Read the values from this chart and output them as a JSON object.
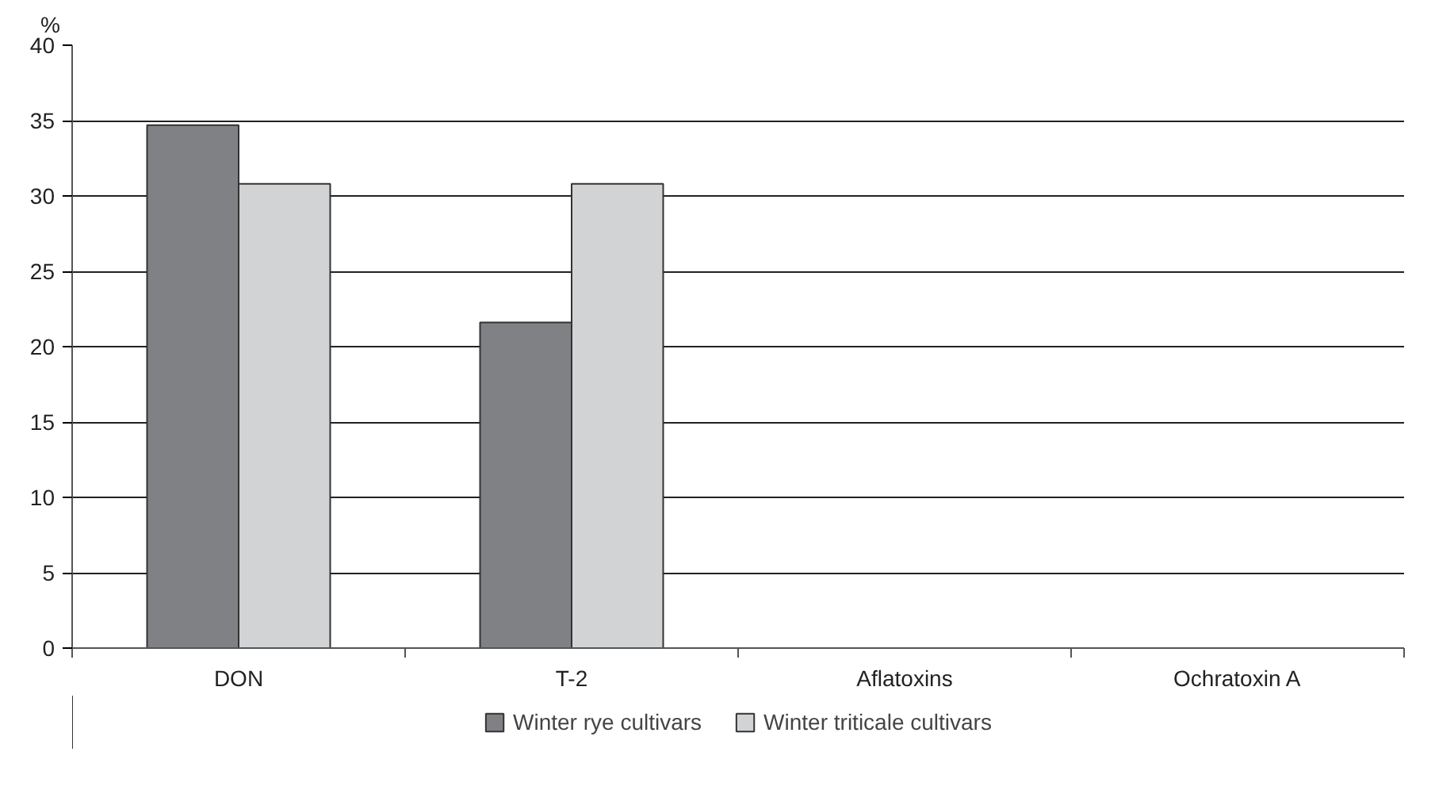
{
  "chart_data": {
    "type": "bar",
    "ylabel": "%",
    "categories": [
      "DON",
      "T-2",
      "Aflatoxins",
      "Ochratoxin A"
    ],
    "series": [
      {
        "name": "Winter rye cultivars",
        "color": "#808185",
        "values": [
          34.7,
          21.6,
          0,
          0
        ]
      },
      {
        "name": "Winter triticale cultivars",
        "color": "#d2d3d5",
        "values": [
          30.8,
          30.8,
          0,
          0
        ]
      }
    ],
    "ylim": [
      0,
      40
    ],
    "yticks": [
      0,
      5,
      10,
      15,
      20,
      25,
      30,
      35,
      40
    ],
    "grid": "y",
    "legend": "bottom"
  }
}
